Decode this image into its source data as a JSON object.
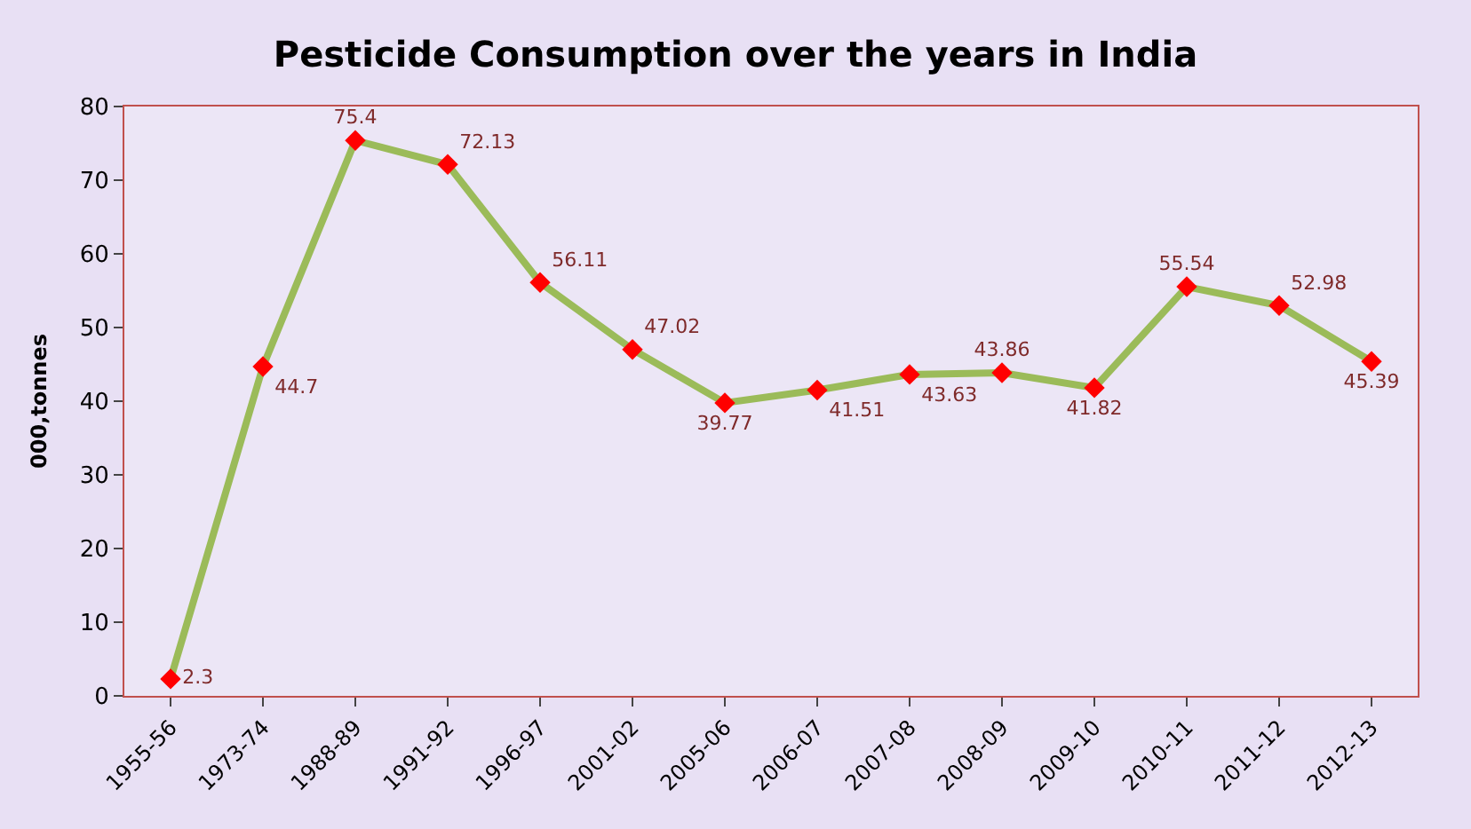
{
  "chart_data": {
    "type": "line",
    "title": "Pesticide Consumption over the years in India",
    "ylabel": "000,tonnes",
    "categories": [
      "1955-56",
      "1973-74",
      "1988-89",
      "1991-92",
      "1996-97",
      "2001-02",
      "2005-06",
      "2006-07",
      "2007-08",
      "2008-09",
      "2009-10",
      "2010-11",
      "2011-12",
      "2012-13"
    ],
    "series": [
      {
        "color": "#9bbb59",
        "colors": [
          "#ff0000",
          "#ff0000",
          "#ff0000",
          "#ff0000",
          "#ff0000",
          "#ff0000",
          "#ff0000",
          "#ff0000",
          "#ff0000",
          "#ff0000",
          "#ff0000",
          "#ff0000",
          "#ff0000",
          "#ff0000"
        ],
        "values": [
          2.3,
          44.7,
          75.4,
          72.13,
          56.11,
          47.02,
          39.77,
          41.51,
          43.63,
          43.86,
          41.82,
          55.54,
          52.98,
          45.39
        ]
      }
    ],
    "ylim": [
      0,
      80
    ],
    "yticks": [
      0,
      10,
      20,
      30,
      40,
      50,
      60,
      70,
      80
    ],
    "grid": false,
    "marker": "diamond",
    "line_style": "solid",
    "data_labels": true
  }
}
